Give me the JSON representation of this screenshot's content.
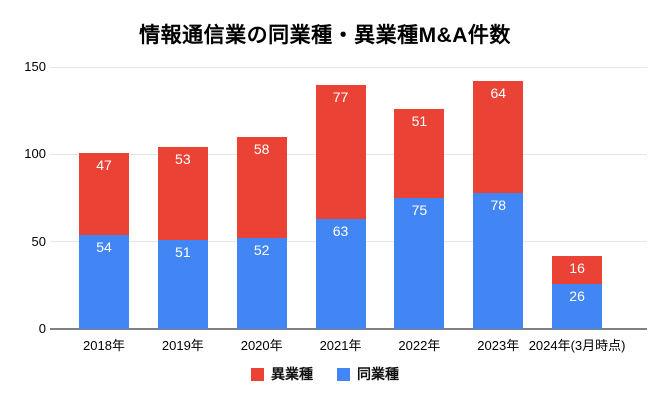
{
  "chart_data": {
    "type": "bar",
    "stacked": true,
    "title": "情報通信業の同業種・異業種M&A件数",
    "categories": [
      "2018年",
      "2019年",
      "2020年",
      "2021年",
      "2022年",
      "2023年",
      "2024年(3月時点)"
    ],
    "series": [
      {
        "name": "同業種",
        "color": "#4285F4",
        "values": [
          54,
          51,
          52,
          63,
          75,
          78,
          26
        ]
      },
      {
        "name": "異業種",
        "color": "#EA4335",
        "values": [
          47,
          53,
          58,
          77,
          51,
          64,
          16
        ]
      }
    ],
    "ylim": [
      0,
      150
    ],
    "yticks": [
      0,
      50,
      100,
      150
    ],
    "xlabel": "",
    "ylabel": "",
    "grid": true,
    "legend_position": "bottom",
    "legend_order": [
      "異業種",
      "同業種"
    ],
    "data_label_color": "#FFFFFF",
    "gridline_color": "#E6E6E6",
    "axis_line_color": "#808080",
    "text_color": "#000000",
    "background_color": "#FFFFFF"
  }
}
